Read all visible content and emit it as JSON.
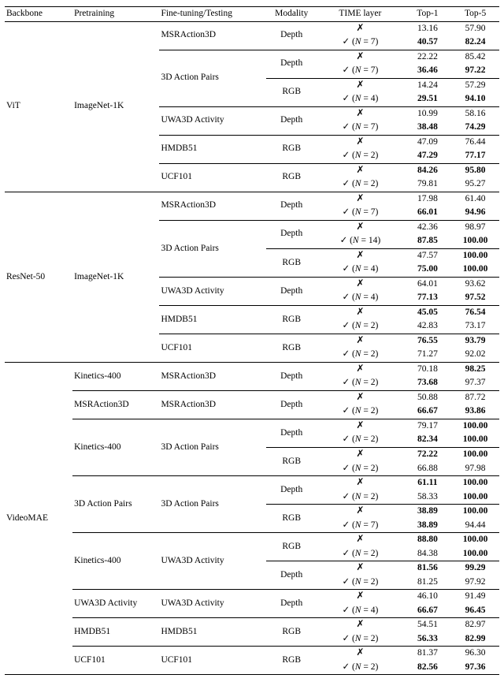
{
  "columns": [
    "Backbone",
    "Pretraining",
    "Fine-tuning/Testing",
    "Modality",
    "TIME layer",
    "Top-1",
    "Top-5"
  ],
  "col_classes": [
    "c-back",
    "c-pre",
    "c-ft",
    "c-mod",
    "c-time",
    "c-top1",
    "c-top5"
  ],
  "cross": "✗",
  "groups": [
    {
      "backbone": "ViT",
      "pretrain": "ImageNet-1K",
      "hvy": true,
      "sub": [
        {
          "ft": "MSRAction3D",
          "mods": [
            {
              "mod": "Depth",
              "rows": [
                {
                  "time": "x",
                  "top1": "13.16",
                  "top5": "57.90",
                  "b1": false,
                  "b5": false
                },
                {
                  "time": "tick",
                  "n": 7,
                  "top1": "40.57",
                  "top5": "82.24",
                  "b1": true,
                  "b5": true
                }
              ]
            }
          ]
        },
        {
          "ft": "3D Action Pairs",
          "mods": [
            {
              "mod": "Depth",
              "rows": [
                {
                  "time": "x",
                  "top1": "22.22",
                  "top5": "85.42",
                  "b1": false,
                  "b5": false
                },
                {
                  "time": "tick",
                  "n": 7,
                  "top1": "36.46",
                  "top5": "97.22",
                  "b1": true,
                  "b5": true
                }
              ]
            },
            {
              "mod": "RGB",
              "rows": [
                {
                  "time": "x",
                  "top1": "14.24",
                  "top5": "57.29",
                  "b1": false,
                  "b5": false
                },
                {
                  "time": "tick",
                  "n": 4,
                  "top1": "29.51",
                  "top5": "94.10",
                  "b1": true,
                  "b5": true
                }
              ]
            }
          ]
        },
        {
          "ft": "UWA3D Activity",
          "mods": [
            {
              "mod": "Depth",
              "rows": [
                {
                  "time": "x",
                  "top1": "10.99",
                  "top5": "58.16",
                  "b1": false,
                  "b5": false
                },
                {
                  "time": "tick",
                  "n": 7,
                  "top1": "38.48",
                  "top5": "74.29",
                  "b1": true,
                  "b5": true
                }
              ]
            }
          ]
        },
        {
          "ft": "HMDB51",
          "mods": [
            {
              "mod": "RGB",
              "rows": [
                {
                  "time": "x",
                  "top1": "47.09",
                  "top5": "76.44",
                  "b1": false,
                  "b5": false
                },
                {
                  "time": "tick",
                  "n": 2,
                  "top1": "47.29",
                  "top5": "77.17",
                  "b1": true,
                  "b5": true
                }
              ]
            }
          ]
        },
        {
          "ft": "UCF101",
          "mods": [
            {
              "mod": "RGB",
              "rows": [
                {
                  "time": "x",
                  "top1": "84.26",
                  "top5": "95.80",
                  "b1": true,
                  "b5": true
                },
                {
                  "time": "tick",
                  "n": 2,
                  "top1": "79.81",
                  "top5": "95.27",
                  "b1": false,
                  "b5": false
                }
              ]
            }
          ]
        }
      ]
    },
    {
      "backbone": "ResNet-50",
      "pretrain": "ImageNet-1K",
      "hvy": true,
      "sub": [
        {
          "ft": "MSRAction3D",
          "mods": [
            {
              "mod": "Depth",
              "rows": [
                {
                  "time": "x",
                  "top1": "17.98",
                  "top5": "61.40",
                  "b1": false,
                  "b5": false
                },
                {
                  "time": "tick",
                  "n": 7,
                  "top1": "66.01",
                  "top5": "94.96",
                  "b1": true,
                  "b5": true
                }
              ]
            }
          ]
        },
        {
          "ft": "3D Action Pairs",
          "mods": [
            {
              "mod": "Depth",
              "rows": [
                {
                  "time": "x",
                  "top1": "42.36",
                  "top5": "98.97",
                  "b1": false,
                  "b5": false
                },
                {
                  "time": "tick",
                  "n": 14,
                  "top1": "87.85",
                  "top5": "100.00",
                  "b1": true,
                  "b5": true
                }
              ]
            },
            {
              "mod": "RGB",
              "rows": [
                {
                  "time": "x",
                  "top1": "47.57",
                  "top5": "100.00",
                  "b1": false,
                  "b5": true
                },
                {
                  "time": "tick",
                  "n": 4,
                  "top1": "75.00",
                  "top5": "100.00",
                  "b1": true,
                  "b5": true
                }
              ]
            }
          ]
        },
        {
          "ft": "UWA3D Activity",
          "mods": [
            {
              "mod": "Depth",
              "rows": [
                {
                  "time": "x",
                  "top1": "64.01",
                  "top5": "93.62",
                  "b1": false,
                  "b5": false
                },
                {
                  "time": "tick",
                  "n": 4,
                  "top1": "77.13",
                  "top5": "97.52",
                  "b1": true,
                  "b5": true
                }
              ]
            }
          ]
        },
        {
          "ft": "HMDB51",
          "mods": [
            {
              "mod": "RGB",
              "rows": [
                {
                  "time": "x",
                  "top1": "45.05",
                  "top5": "76.54",
                  "b1": true,
                  "b5": true
                },
                {
                  "time": "tick",
                  "n": 2,
                  "top1": "42.83",
                  "top5": "73.17",
                  "b1": false,
                  "b5": false
                }
              ]
            }
          ]
        },
        {
          "ft": "UCF101",
          "mods": [
            {
              "mod": "RGB",
              "rows": [
                {
                  "time": "x",
                  "top1": "76.55",
                  "top5": "93.79",
                  "b1": true,
                  "b5": true
                },
                {
                  "time": "tick",
                  "n": 2,
                  "top1": "71.27",
                  "top5": "92.02",
                  "b1": false,
                  "b5": false
                }
              ]
            }
          ]
        }
      ]
    },
    {
      "backbone": "VideoMAE",
      "hvy": true,
      "subpre": [
        {
          "pretrain": "Kinetics-400",
          "ft": "MSRAction3D",
          "mods": [
            {
              "mod": "Depth",
              "rows": [
                {
                  "time": "x",
                  "top1": "70.18",
                  "top5": "98.25",
                  "b1": false,
                  "b5": true
                },
                {
                  "time": "tick",
                  "n": 2,
                  "top1": "73.68",
                  "top5": "97.37",
                  "b1": true,
                  "b5": false
                }
              ]
            }
          ]
        },
        {
          "pretrain": "MSRAction3D",
          "ft": "MSRAction3D",
          "mods": [
            {
              "mod": "Depth",
              "rows": [
                {
                  "time": "x",
                  "top1": "50.88",
                  "top5": "87.72",
                  "b1": false,
                  "b5": false
                },
                {
                  "time": "tick",
                  "n": 2,
                  "top1": "66.67",
                  "top5": "93.86",
                  "b1": true,
                  "b5": true
                }
              ]
            }
          ]
        },
        {
          "pretrain": "Kinetics-400",
          "ft": "3D Action Pairs",
          "mods": [
            {
              "mod": "Depth",
              "rows": [
                {
                  "time": "x",
                  "top1": "79.17",
                  "top5": "100.00",
                  "b1": false,
                  "b5": true
                },
                {
                  "time": "tick",
                  "n": 2,
                  "top1": "82.34",
                  "top5": "100.00",
                  "b1": true,
                  "b5": true
                }
              ]
            },
            {
              "mod": "RGB",
              "rows": [
                {
                  "time": "x",
                  "top1": "72.22",
                  "top5": "100.00",
                  "b1": true,
                  "b5": true
                },
                {
                  "time": "tick",
                  "n": 2,
                  "top1": "66.88",
                  "top5": "97.98",
                  "b1": false,
                  "b5": false
                }
              ]
            }
          ]
        },
        {
          "pretrain": "3D Action Pairs",
          "ft": "3D Action Pairs",
          "mods": [
            {
              "mod": "Depth",
              "rows": [
                {
                  "time": "x",
                  "top1": "61.11",
                  "top5": "100.00",
                  "b1": true,
                  "b5": true
                },
                {
                  "time": "tick",
                  "n": 2,
                  "top1": "58.33",
                  "top5": "100.00",
                  "b1": false,
                  "b5": true
                }
              ]
            },
            {
              "mod": "RGB",
              "rows": [
                {
                  "time": "x",
                  "top1": "38.89",
                  "top5": "100.00",
                  "b1": true,
                  "b5": true
                },
                {
                  "time": "tick",
                  "n": 7,
                  "top1": "38.89",
                  "top5": "94.44",
                  "b1": true,
                  "b5": false
                }
              ]
            }
          ]
        },
        {
          "pretrain": "Kinetics-400",
          "ft": "UWA3D Activity",
          "mods": [
            {
              "mod": "RGB",
              "rows": [
                {
                  "time": "x",
                  "top1": "88.80",
                  "top5": "100.00",
                  "b1": true,
                  "b5": true
                },
                {
                  "time": "tick",
                  "n": 2,
                  "top1": "84.38",
                  "top5": "100.00",
                  "b1": false,
                  "b5": true
                }
              ]
            },
            {
              "mod": "Depth",
              "rows": [
                {
                  "time": "x",
                  "top1": "81.56",
                  "top5": "99.29",
                  "b1": true,
                  "b5": true
                },
                {
                  "time": "tick",
                  "n": 2,
                  "top1": "81.25",
                  "top5": "97.92",
                  "b1": false,
                  "b5": false
                }
              ]
            }
          ]
        },
        {
          "pretrain": "UWA3D Activity",
          "ft": "UWA3D Activity",
          "mods": [
            {
              "mod": "Depth",
              "rows": [
                {
                  "time": "x",
                  "top1": "46.10",
                  "top5": "91.49",
                  "b1": false,
                  "b5": false
                },
                {
                  "time": "tick",
                  "n": 4,
                  "top1": "66.67",
                  "top5": "96.45",
                  "b1": true,
                  "b5": true
                }
              ]
            }
          ]
        },
        {
          "pretrain": "HMDB51",
          "ft": "HMDB51",
          "mods": [
            {
              "mod": "RGB",
              "rows": [
                {
                  "time": "x",
                  "top1": "54.51",
                  "top5": "82.97",
                  "b1": false,
                  "b5": false
                },
                {
                  "time": "tick",
                  "n": 2,
                  "top1": "56.33",
                  "top5": "82.99",
                  "b1": true,
                  "b5": true
                }
              ]
            }
          ]
        },
        {
          "pretrain": "UCF101",
          "ft": "UCF101",
          "mods": [
            {
              "mod": "RGB",
              "rows": [
                {
                  "time": "x",
                  "top1": "81.37",
                  "top5": "96.30",
                  "b1": false,
                  "b5": false
                },
                {
                  "time": "tick",
                  "n": 2,
                  "top1": "82.56",
                  "top5": "97.36",
                  "b1": true,
                  "b5": true
                }
              ]
            }
          ]
        }
      ]
    }
  ]
}
